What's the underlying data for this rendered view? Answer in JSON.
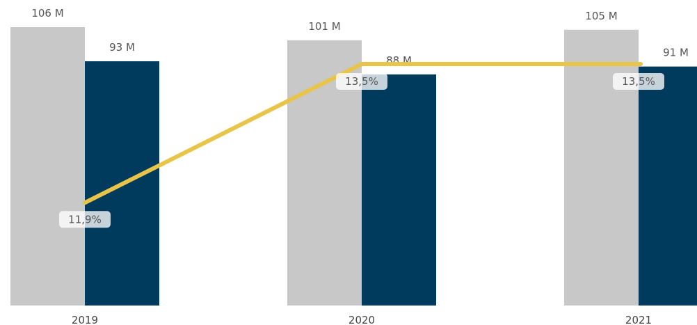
{
  "chart_data": {
    "type": "bar",
    "categories": [
      "2019",
      "2020",
      "2021"
    ],
    "series": [
      {
        "values": [
          106,
          101,
          105
        ],
        "labels": [
          "106 M",
          "101 M",
          "105 M"
        ],
        "color": "#c8c8c8"
      },
      {
        "values": [
          93,
          88,
          91
        ],
        "labels": [
          "93 M",
          "88 M",
          "91 M"
        ],
        "color": "#003a5d"
      }
    ],
    "line_series": {
      "values": [
        11.9,
        13.5,
        13.5
      ],
      "labels": [
        "11,9%",
        "13,5%",
        "13,5%"
      ],
      "color": "#e8c548"
    },
    "ylim": [
      0,
      106
    ],
    "line_ylim": [
      11.3,
      13.5
    ],
    "title": "",
    "xlabel": "",
    "ylabel": "",
    "grid": false,
    "legend": "none"
  }
}
